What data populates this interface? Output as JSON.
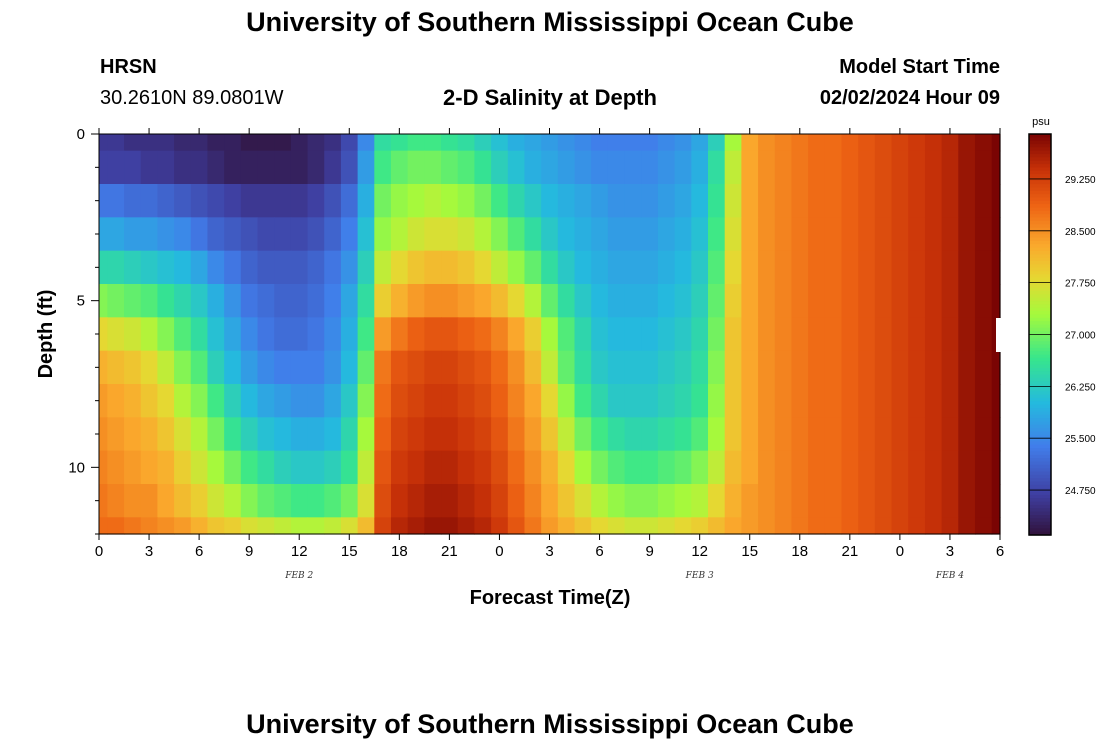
{
  "header": {
    "title": "University of Southern Mississippi Ocean Cube",
    "station": "HRSN",
    "coords": "30.2610N  89.0801W",
    "subtitle": "2-D Salinity at Depth",
    "model_start_label": "Model Start Time",
    "model_start_value": "02/02/2024 Hour 09"
  },
  "footer": {
    "title": "University of Southern Mississippi Ocean Cube"
  },
  "chart_data": {
    "type": "heatmap",
    "title": "2-D Salinity at Depth",
    "xlabel": "Forecast Time(Z)",
    "ylabel": "Depth (ft)",
    "x_ticks": [
      "0",
      "3",
      "6",
      "9",
      "12",
      "15",
      "18",
      "21",
      "0",
      "3",
      "6",
      "9",
      "12",
      "15",
      "18",
      "21",
      "0",
      "3",
      "6"
    ],
    "x_range_hours": [
      0,
      54
    ],
    "date_labels": [
      {
        "text": "FEB 2",
        "hour": 12
      },
      {
        "text": "FEB 3",
        "hour": 36
      },
      {
        "text": "FEB 4",
        "hour": 51
      }
    ],
    "y_ticks": [
      "0",
      "5",
      "10"
    ],
    "y_tick_values": [
      0,
      5,
      10
    ],
    "y_range_ft": [
      0,
      12
    ],
    "depth_layers_ft": [
      0.25,
      1.0,
      2.0,
      3.0,
      4.0,
      5.0,
      6.0,
      7.0,
      8.0,
      9.0,
      10.0,
      11.0,
      12.0
    ],
    "colorbar": {
      "unit": "psu",
      "ticks": [
        "24.750",
        "25.500",
        "26.250",
        "27.000",
        "27.750",
        "28.500",
        "29.250"
      ],
      "tick_values": [
        24.75,
        25.5,
        26.25,
        27.0,
        27.75,
        28.5,
        29.25
      ],
      "range": [
        24.1,
        29.9
      ]
    },
    "salinity_grid_note": "rows = depth layers (top to bottom), cols = hours 0..54",
    "salinity_grid": [
      [
        24.6,
        24.6,
        24.5,
        24.5,
        24.5,
        24.4,
        24.4,
        24.3,
        24.3,
        24.2,
        24.2,
        24.2,
        24.3,
        24.4,
        24.5,
        24.8,
        25.5,
        26.5,
        26.6,
        26.7,
        26.7,
        26.6,
        26.5,
        26.3,
        26.1,
        25.9,
        25.8,
        25.7,
        25.6,
        25.5,
        25.4,
        25.4,
        25.4,
        25.4,
        25.5,
        25.6,
        25.8,
        26.3,
        27.3,
        28.3,
        28.5,
        28.6,
        28.7,
        28.8,
        28.8,
        28.9,
        29.0,
        29.1,
        29.2,
        29.3,
        29.4,
        29.5,
        29.7,
        29.8,
        29.9
      ],
      [
        24.7,
        24.7,
        24.7,
        24.6,
        24.6,
        24.5,
        24.5,
        24.4,
        24.3,
        24.3,
        24.3,
        24.3,
        24.3,
        24.4,
        24.6,
        24.9,
        25.7,
        26.7,
        26.9,
        27.0,
        27.0,
        26.9,
        26.8,
        26.6,
        26.3,
        26.1,
        25.9,
        25.8,
        25.7,
        25.6,
        25.5,
        25.5,
        25.5,
        25.5,
        25.6,
        25.7,
        25.9,
        26.5,
        27.5,
        28.3,
        28.5,
        28.6,
        28.7,
        28.8,
        28.8,
        28.9,
        29.0,
        29.1,
        29.2,
        29.3,
        29.4,
        29.5,
        29.7,
        29.8,
        29.9
      ],
      [
        25.3,
        25.3,
        25.2,
        25.2,
        25.1,
        25.0,
        24.9,
        24.8,
        24.7,
        24.6,
        24.6,
        24.6,
        24.6,
        24.7,
        24.9,
        25.2,
        25.9,
        27.0,
        27.2,
        27.3,
        27.4,
        27.3,
        27.2,
        27.0,
        26.7,
        26.4,
        26.2,
        26.0,
        25.9,
        25.8,
        25.7,
        25.6,
        25.6,
        25.6,
        25.7,
        25.8,
        26.0,
        26.6,
        27.6,
        28.3,
        28.5,
        28.6,
        28.7,
        28.8,
        28.8,
        28.9,
        29.0,
        29.1,
        29.2,
        29.3,
        29.4,
        29.5,
        29.7,
        29.8,
        29.9
      ],
      [
        25.8,
        25.8,
        25.7,
        25.7,
        25.6,
        25.5,
        25.3,
        25.1,
        25.0,
        24.9,
        24.8,
        24.8,
        24.8,
        24.9,
        25.1,
        25.4,
        26.1,
        27.2,
        27.4,
        27.6,
        27.7,
        27.7,
        27.6,
        27.4,
        27.1,
        26.8,
        26.5,
        26.2,
        26.0,
        25.9,
        25.8,
        25.7,
        25.7,
        25.7,
        25.8,
        25.9,
        26.1,
        26.7,
        27.7,
        28.3,
        28.5,
        28.6,
        28.7,
        28.8,
        28.8,
        28.9,
        29.0,
        29.1,
        29.2,
        29.3,
        29.4,
        29.5,
        29.7,
        29.8,
        29.9
      ],
      [
        26.4,
        26.4,
        26.3,
        26.2,
        26.1,
        26.0,
        25.8,
        25.5,
        25.3,
        25.1,
        25.0,
        25.0,
        25.0,
        25.1,
        25.3,
        25.6,
        26.3,
        27.5,
        27.8,
        28.0,
        28.1,
        28.1,
        28.0,
        27.8,
        27.5,
        27.2,
        26.9,
        26.5,
        26.2,
        26.0,
        25.9,
        25.8,
        25.8,
        25.8,
        25.9,
        26.0,
        26.2,
        26.8,
        27.8,
        28.3,
        28.5,
        28.6,
        28.7,
        28.8,
        28.8,
        28.9,
        29.0,
        29.1,
        29.2,
        29.3,
        29.4,
        29.5,
        29.7,
        29.8,
        29.9
      ],
      [
        27.1,
        27.0,
        26.9,
        26.8,
        26.6,
        26.4,
        26.2,
        25.9,
        25.6,
        25.3,
        25.2,
        25.1,
        25.1,
        25.2,
        25.4,
        25.8,
        26.5,
        27.9,
        28.2,
        28.4,
        28.5,
        28.5,
        28.4,
        28.3,
        28.1,
        27.8,
        27.4,
        26.9,
        26.5,
        26.2,
        26.0,
        25.9,
        25.9,
        25.9,
        26.0,
        26.1,
        26.3,
        26.9,
        27.9,
        28.3,
        28.5,
        28.6,
        28.7,
        28.8,
        28.8,
        28.9,
        29.0,
        29.1,
        29.2,
        29.3,
        29.4,
        29.5,
        29.7,
        29.8,
        29.9
      ],
      [
        27.8,
        27.7,
        27.6,
        27.4,
        27.1,
        26.8,
        26.5,
        26.1,
        25.8,
        25.5,
        25.3,
        25.2,
        25.2,
        25.3,
        25.5,
        25.9,
        26.7,
        28.4,
        28.7,
        28.9,
        29.0,
        29.0,
        28.9,
        28.8,
        28.6,
        28.3,
        27.9,
        27.3,
        26.8,
        26.4,
        26.1,
        26.0,
        26.0,
        26.0,
        26.1,
        26.2,
        26.4,
        27.0,
        28.0,
        28.3,
        28.5,
        28.6,
        28.7,
        28.8,
        28.8,
        28.9,
        29.0,
        29.1,
        29.2,
        29.3,
        29.4,
        29.5,
        29.7,
        29.8,
        29.9
      ],
      [
        28.2,
        28.1,
        28.0,
        27.8,
        27.5,
        27.1,
        26.8,
        26.3,
        26.0,
        25.7,
        25.5,
        25.4,
        25.4,
        25.4,
        25.6,
        26.0,
        26.9,
        28.7,
        29.0,
        29.1,
        29.2,
        29.2,
        29.1,
        29.0,
        28.8,
        28.5,
        28.1,
        27.5,
        26.9,
        26.5,
        26.2,
        26.1,
        26.1,
        26.1,
        26.2,
        26.3,
        26.5,
        27.1,
        28.0,
        28.3,
        28.5,
        28.6,
        28.7,
        28.8,
        28.8,
        28.9,
        29.0,
        29.1,
        29.2,
        29.3,
        29.4,
        29.5,
        29.7,
        29.8,
        29.9
      ],
      [
        28.4,
        28.3,
        28.2,
        28.0,
        27.8,
        27.4,
        27.1,
        26.7,
        26.3,
        26.0,
        25.8,
        25.7,
        25.6,
        25.6,
        25.8,
        26.2,
        27.1,
        28.8,
        29.1,
        29.2,
        29.3,
        29.3,
        29.2,
        29.1,
        28.9,
        28.6,
        28.3,
        27.8,
        27.2,
        26.7,
        26.4,
        26.2,
        26.2,
        26.2,
        26.3,
        26.4,
        26.6,
        27.2,
        28.0,
        28.3,
        28.5,
        28.6,
        28.7,
        28.8,
        28.8,
        28.9,
        29.0,
        29.1,
        29.2,
        29.3,
        29.4,
        29.5,
        29.7,
        29.8,
        29.9
      ],
      [
        28.5,
        28.4,
        28.3,
        28.2,
        28.0,
        27.7,
        27.4,
        27.0,
        26.6,
        26.3,
        26.1,
        26.0,
        25.9,
        25.9,
        26.0,
        26.4,
        27.3,
        28.9,
        29.2,
        29.3,
        29.4,
        29.4,
        29.3,
        29.2,
        29.0,
        28.7,
        28.4,
        28.0,
        27.5,
        27.0,
        26.7,
        26.5,
        26.4,
        26.4,
        26.5,
        26.6,
        26.8,
        27.3,
        28.0,
        28.3,
        28.5,
        28.6,
        28.7,
        28.8,
        28.8,
        28.9,
        29.0,
        29.1,
        29.2,
        29.3,
        29.4,
        29.5,
        29.7,
        29.8,
        29.9
      ],
      [
        28.6,
        28.5,
        28.4,
        28.3,
        28.2,
        27.9,
        27.6,
        27.3,
        27.0,
        26.7,
        26.5,
        26.3,
        26.2,
        26.2,
        26.3,
        26.6,
        27.5,
        29.0,
        29.3,
        29.4,
        29.5,
        29.5,
        29.4,
        29.3,
        29.1,
        28.8,
        28.5,
        28.2,
        27.8,
        27.3,
        27.0,
        26.8,
        26.7,
        26.7,
        26.8,
        26.9,
        27.1,
        27.5,
        28.1,
        28.3,
        28.5,
        28.6,
        28.7,
        28.8,
        28.8,
        28.9,
        29.0,
        29.1,
        29.2,
        29.3,
        29.4,
        29.5,
        29.7,
        29.8,
        29.9
      ],
      [
        28.7,
        28.6,
        28.5,
        28.5,
        28.3,
        28.1,
        27.9,
        27.6,
        27.4,
        27.1,
        26.9,
        26.8,
        26.7,
        26.7,
        26.8,
        27.0,
        27.7,
        29.1,
        29.4,
        29.5,
        29.6,
        29.6,
        29.5,
        29.4,
        29.2,
        28.9,
        28.6,
        28.3,
        28.0,
        27.7,
        27.4,
        27.2,
        27.1,
        27.1,
        27.2,
        27.3,
        27.4,
        27.8,
        28.2,
        28.4,
        28.5,
        28.6,
        28.7,
        28.8,
        28.8,
        28.9,
        29.0,
        29.1,
        29.2,
        29.3,
        29.4,
        29.5,
        29.7,
        29.8,
        29.9
      ],
      [
        28.8,
        28.8,
        28.7,
        28.6,
        28.5,
        28.4,
        28.2,
        28.0,
        27.9,
        27.7,
        27.6,
        27.5,
        27.4,
        27.4,
        27.5,
        27.7,
        28.1,
        29.2,
        29.5,
        29.6,
        29.7,
        29.7,
        29.6,
        29.5,
        29.3,
        29.0,
        28.7,
        28.4,
        28.2,
        28.0,
        27.8,
        27.7,
        27.6,
        27.6,
        27.7,
        27.8,
        27.9,
        28.1,
        28.3,
        28.4,
        28.5,
        28.6,
        28.7,
        28.8,
        28.8,
        28.9,
        29.0,
        29.1,
        29.2,
        29.3,
        29.4,
        29.5,
        29.7,
        29.8,
        29.9
      ]
    ]
  }
}
